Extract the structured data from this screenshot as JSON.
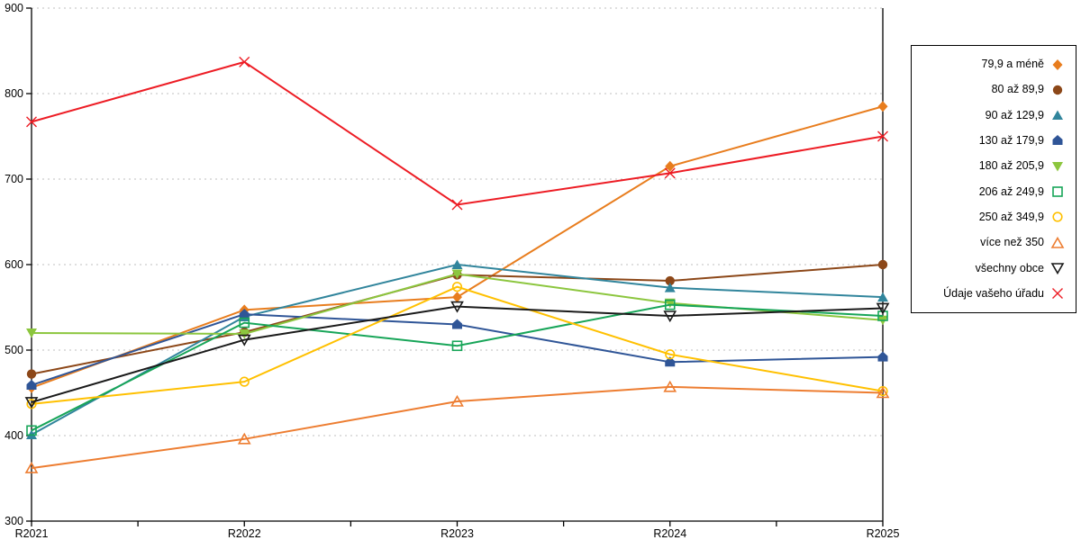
{
  "chart_data": {
    "type": "line",
    "title": "",
    "xlabel": "",
    "ylabel": "",
    "categories": [
      "R2021",
      "R2022",
      "R2023",
      "R2024",
      "R2025"
    ],
    "yticks": [
      300,
      400,
      500,
      600,
      700,
      800,
      900
    ],
    "ylim": [
      300,
      900
    ],
    "grid": "horizontal-dotted",
    "legend_position": "right",
    "series": [
      {
        "name": "79,9 a méně",
        "color": "#E87D1E",
        "marker": "diamond",
        "values": [
          456,
          547,
          562,
          715,
          785
        ]
      },
      {
        "name": "80 až 89,9",
        "color": "#8C4718",
        "marker": "circle",
        "values": [
          472,
          521,
          588,
          581,
          600
        ]
      },
      {
        "name": "90 až 129,9",
        "color": "#31859C",
        "marker": "triangle-up",
        "values": [
          401,
          539,
          600,
          573,
          562
        ]
      },
      {
        "name": "130 až 179,9",
        "color": "#2F5597",
        "marker": "pentagon",
        "values": [
          459,
          542,
          530,
          486,
          492
        ]
      },
      {
        "name": "180 až 205,9",
        "color": "#8CC63E",
        "marker": "triangle-down",
        "values": [
          520,
          519,
          589,
          555,
          535
        ]
      },
      {
        "name": "206 až 249,9",
        "color": "#17A558",
        "marker": "square-open",
        "values": [
          406,
          532,
          505,
          553,
          540
        ]
      },
      {
        "name": "250 až 349,9",
        "color": "#FFC000",
        "marker": "circle-open",
        "values": [
          437,
          463,
          574,
          495,
          452
        ]
      },
      {
        "name": "více než 350",
        "color": "#ED7D31",
        "marker": "triangle-up-open",
        "values": [
          362,
          396,
          440,
          457,
          450
        ]
      },
      {
        "name": "všechny obce",
        "color": "#1A1A1A",
        "marker": "triangle-down-open",
        "values": [
          439,
          512,
          551,
          540,
          549
        ]
      },
      {
        "name": "Údaje vašeho úřadu",
        "color": "#ED1C24",
        "marker": "x",
        "values": [
          767,
          837,
          670,
          707,
          750
        ]
      }
    ]
  },
  "colors": {
    "gridline": "#BFBFBF",
    "axis": "#000000",
    "text": "#000000",
    "background": "#FFFFFF"
  }
}
